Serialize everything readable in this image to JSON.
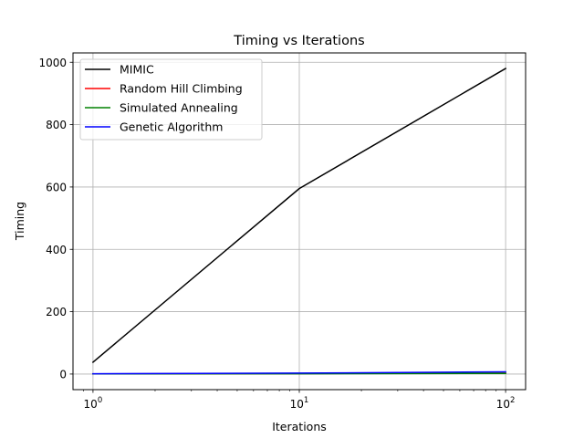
{
  "chart_data": {
    "type": "line",
    "title": "Timing vs Iterations",
    "xlabel": "Iterations",
    "ylabel": "Timing",
    "x_scale": "log",
    "xlim": [
      0.8,
      125
    ],
    "ylim": [
      -50,
      1030
    ],
    "x": [
      1,
      10,
      100
    ],
    "x_ticks": [
      {
        "value": 1,
        "base": "10",
        "exp": "0"
      },
      {
        "value": 10,
        "base": "10",
        "exp": "1"
      },
      {
        "value": 100,
        "base": "10",
        "exp": "2"
      }
    ],
    "y_ticks": [
      0,
      200,
      400,
      600,
      800,
      1000
    ],
    "grid": true,
    "legend_position": "upper left",
    "series": [
      {
        "name": "MIMIC",
        "color": "#000000",
        "values": [
          38,
          595,
          980
        ]
      },
      {
        "name": "Random Hill Climbing",
        "color": "#ff0000",
        "values": [
          0.5,
          1.5,
          3
        ]
      },
      {
        "name": "Simulated Annealing",
        "color": "#008000",
        "values": [
          0.3,
          1.0,
          2
        ]
      },
      {
        "name": "Genetic Algorithm",
        "color": "#0000ff",
        "values": [
          1,
          3,
          7
        ]
      }
    ]
  }
}
